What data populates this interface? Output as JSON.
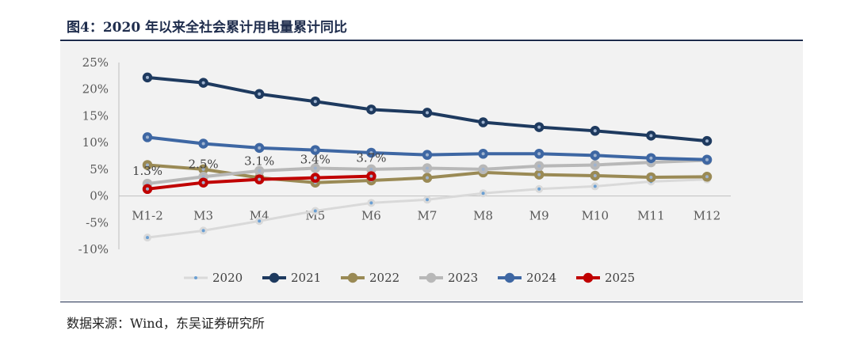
{
  "title": "图4：2020 年以来全社会累计用电量累计同比",
  "source": "数据来源：Wind，东吴证券研究所",
  "chart_data": {
    "type": "line",
    "categories": [
      "M1-2",
      "M3",
      "M4",
      "M5",
      "M6",
      "M7",
      "M8",
      "M9",
      "M10",
      "M11",
      "M12"
    ],
    "y_ticks": [
      "25%",
      "20%",
      "15%",
      "10%",
      "5%",
      "0%",
      "-5%",
      "-10%"
    ],
    "ylim": [
      -10,
      25
    ],
    "legend_position": "bottom",
    "series": [
      {
        "name": "2020",
        "color": "#d9d9d9",
        "dot": "#6a9fd3",
        "width": 3,
        "values": [
          -7.8,
          -6.5,
          -4.7,
          -2.8,
          -1.3,
          -0.7,
          0.5,
          1.3,
          1.8,
          2.7,
          3.1
        ]
      },
      {
        "name": "2021",
        "color": "#1e3a5f",
        "dot": "#1e3a5f",
        "width": 4,
        "values": [
          22.2,
          21.2,
          19.1,
          17.7,
          16.2,
          15.6,
          13.8,
          12.9,
          12.2,
          11.3,
          10.3
        ]
      },
      {
        "name": "2022",
        "color": "#9a8a55",
        "dot": "#9a8a55",
        "width": 4,
        "values": [
          5.8,
          5.0,
          3.4,
          2.5,
          2.9,
          3.4,
          4.4,
          4.0,
          3.8,
          3.5,
          3.6
        ]
      },
      {
        "name": "2023",
        "color": "#b8b8b8",
        "dot": "#b8b8b8",
        "width": 4,
        "values": [
          2.3,
          3.6,
          4.7,
          5.2,
          5.0,
          5.2,
          5.0,
          5.6,
          5.8,
          6.3,
          6.7
        ]
      },
      {
        "name": "2024",
        "color": "#3e67a3",
        "dot": "#3e67a3",
        "width": 4,
        "values": [
          11.0,
          9.8,
          9.0,
          8.6,
          8.1,
          7.7,
          7.9,
          7.9,
          7.6,
          7.1,
          6.8
        ]
      },
      {
        "name": "2025",
        "color": "#c00000",
        "dot": "#c00000",
        "width": 4,
        "values": [
          1.3,
          2.5,
          3.1,
          3.4,
          3.7,
          null,
          null,
          null,
          null,
          null,
          null
        ]
      }
    ],
    "data_labels": {
      "series": "2025",
      "labels": [
        "1.3%",
        "2.5%",
        "3.1%",
        "3.4%",
        "3.7%"
      ]
    }
  }
}
